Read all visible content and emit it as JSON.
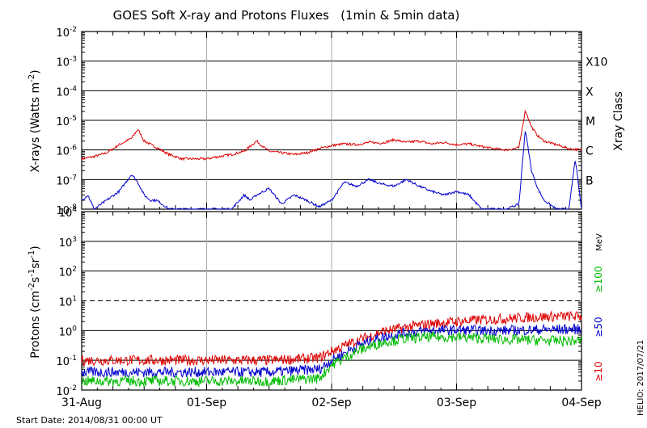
{
  "chart_data": [
    {
      "type": "line",
      "title": "GOES Soft X-ray and Protons Fluxes   (1min & 5min data)",
      "ylabel_main": "X-rays (Watts m",
      "ylabel_sup": "-2",
      "ylabel_close": ")",
      "yscale": "log",
      "ylim": [
        1e-08,
        0.01
      ],
      "x_ticks": [
        "31-Aug",
        "01-Sep",
        "02-Sep",
        "03-Sep",
        "04-Sep"
      ],
      "xlim": [
        "2014-08-31",
        "2014-09-04"
      ],
      "grid": true,
      "right_axis_label": "Xray Class",
      "class_labels": [
        {
          "label": "X10",
          "value": 0.001
        },
        {
          "label": "X",
          "value": 0.0001
        },
        {
          "label": "M",
          "value": 1e-05
        },
        {
          "label": "C",
          "value": 1e-06
        },
        {
          "label": "B",
          "value": 1e-07
        }
      ],
      "series": [
        {
          "color": "#dd0000",
          "x": [
            0,
            0.1,
            0.2,
            0.3,
            0.4,
            0.45,
            0.5,
            0.6,
            0.7,
            0.75,
            0.8,
            0.9,
            1.0,
            1.1,
            1.2,
            1.3,
            1.4,
            1.45,
            1.5,
            1.6,
            1.7,
            1.8,
            1.9,
            2.0,
            2.1,
            2.2,
            2.3,
            2.4,
            2.5,
            2.6,
            2.7,
            2.8,
            2.9,
            3.0,
            3.1,
            3.2,
            3.3,
            3.4,
            3.5,
            3.55,
            3.6,
            3.65,
            3.7,
            3.8,
            3.9,
            4.0
          ],
          "y": [
            5e-07,
            6e-07,
            8e-07,
            1.5e-06,
            2.5e-06,
            5e-06,
            2e-06,
            1.2e-06,
            7e-07,
            6e-07,
            5e-07,
            5e-07,
            5e-07,
            6e-07,
            7e-07,
            9e-07,
            2e-06,
            1.3e-06,
            9e-07,
            8e-07,
            7e-07,
            8e-07,
            1.1e-06,
            1.4e-06,
            1.6e-06,
            1.5e-06,
            1.8e-06,
            1.7e-06,
            2.2e-06,
            1.8e-06,
            2e-06,
            1.6e-06,
            1.8e-06,
            1.5e-06,
            1.6e-06,
            1.3e-06,
            1.1e-06,
            1e-06,
            1.2e-06,
            2.2e-05,
            6e-06,
            3e-06,
            2e-06,
            1.5e-06,
            1.1e-06,
            1e-06
          ]
        },
        {
          "color": "#0000cc",
          "x": [
            0,
            0.05,
            0.1,
            0.2,
            0.3,
            0.4,
            0.45,
            0.5,
            0.55,
            0.6,
            0.7,
            0.8,
            0.9,
            1.0,
            1.1,
            1.2,
            1.3,
            1.35,
            1.4,
            1.5,
            1.6,
            1.7,
            1.8,
            1.9,
            2.0,
            2.1,
            2.2,
            2.3,
            2.4,
            2.5,
            2.6,
            2.7,
            2.8,
            2.9,
            3.0,
            3.1,
            3.2,
            3.3,
            3.4,
            3.5,
            3.55,
            3.6,
            3.65,
            3.7,
            3.8,
            3.9,
            3.95,
            4.0
          ],
          "y": [
            2e-08,
            3e-08,
            1e-08,
            2e-08,
            4e-08,
            1.5e-07,
            8e-08,
            3e-08,
            2e-08,
            2e-08,
            1e-08,
            1e-08,
            1e-08,
            1e-08,
            1e-08,
            1e-08,
            3e-08,
            2e-08,
            3e-08,
            5e-08,
            1.5e-08,
            3e-08,
            2e-08,
            1.2e-08,
            2e-08,
            8e-08,
            6e-08,
            1e-07,
            7e-08,
            6e-08,
            1e-07,
            6e-08,
            4e-08,
            3e-08,
            4e-08,
            3e-08,
            1e-08,
            1e-08,
            1e-08,
            1.5e-08,
            5e-06,
            2e-07,
            5e-08,
            2e-08,
            1e-08,
            1e-08,
            5e-07,
            1e-08
          ]
        }
      ]
    },
    {
      "type": "line",
      "ylabel_pre": "Protons (cm",
      "ylabel_sup1": "-2",
      "ylabel_mid1": "s",
      "ylabel_sup2": "-1",
      "ylabel_mid2": "sr",
      "ylabel_sup3": "-1",
      "ylabel_close": ")",
      "yscale": "log",
      "ylim": [
        0.01,
        10000
      ],
      "x_ticks": [
        "31-Aug",
        "01-Sep",
        "02-Sep",
        "03-Sep",
        "04-Sep"
      ],
      "xlim": [
        "2014-08-31",
        "2014-09-04"
      ],
      "grid": true,
      "threshold_line": 10,
      "right_labels": [
        {
          "label": "MeV",
          "color": "#000000"
        },
        {
          "label": "≥100",
          "color": "#00bb00"
        },
        {
          "label": "≥50",
          "color": "#0000cc"
        },
        {
          "label": "≥10",
          "color": "#dd0000"
        }
      ],
      "series": [
        {
          "name": "≥10",
          "color": "#dd0000",
          "x": [
            0,
            0.5,
            1.0,
            1.5,
            1.9,
            2.0,
            2.2,
            2.4,
            2.6,
            2.8,
            3.0,
            3.2,
            3.4,
            3.6,
            3.8,
            4.0
          ],
          "y": [
            0.1,
            0.1,
            0.1,
            0.1,
            0.12,
            0.2,
            0.45,
            0.9,
            1.3,
            1.7,
            2.0,
            2.3,
            2.5,
            2.8,
            3.0,
            3.0
          ]
        },
        {
          "name": "≥50",
          "color": "#0000cc",
          "x": [
            0,
            0.5,
            1.0,
            1.5,
            1.9,
            2.0,
            2.2,
            2.4,
            2.6,
            2.8,
            3.0,
            3.2,
            3.4,
            3.6,
            3.8,
            4.0
          ],
          "y": [
            0.04,
            0.04,
            0.04,
            0.04,
            0.05,
            0.1,
            0.3,
            0.6,
            0.85,
            1.0,
            1.05,
            1.0,
            1.0,
            1.05,
            1.1,
            1.1
          ]
        },
        {
          "name": "≥100",
          "color": "#00bb00",
          "x": [
            0,
            0.5,
            1.0,
            1.5,
            1.9,
            2.0,
            2.2,
            2.4,
            2.6,
            2.8,
            3.0,
            3.2,
            3.4,
            3.6,
            3.8,
            4.0
          ],
          "y": [
            0.02,
            0.02,
            0.02,
            0.02,
            0.025,
            0.07,
            0.2,
            0.4,
            0.55,
            0.6,
            0.6,
            0.55,
            0.5,
            0.48,
            0.45,
            0.45
          ]
        }
      ]
    }
  ],
  "footer": {
    "start_date": "Start Date: 2014/08/31 00:00 UT",
    "credit": "HELIO: 2017/07/21"
  }
}
